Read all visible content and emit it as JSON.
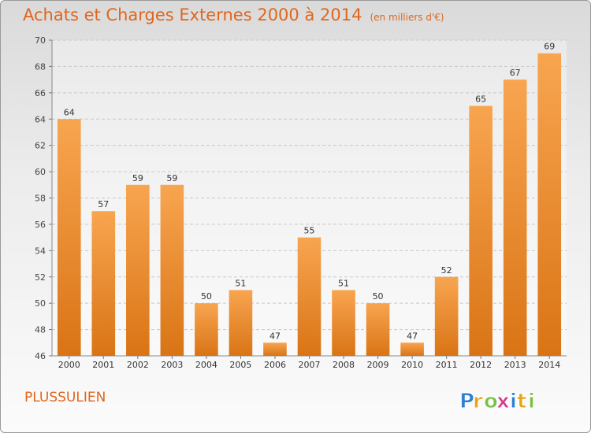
{
  "chart_data": {
    "type": "bar",
    "title": "Achats et Charges Externes 2000 à 2014",
    "subtitle": "(en milliers d'€)",
    "categories": [
      "2000",
      "2001",
      "2002",
      "2003",
      "2004",
      "2005",
      "2006",
      "2007",
      "2008",
      "2009",
      "2010",
      "2011",
      "2012",
      "2013",
      "2014"
    ],
    "values": [
      64,
      57,
      59,
      59,
      50,
      51,
      47,
      55,
      51,
      50,
      47,
      52,
      65,
      67,
      69
    ],
    "ylim": [
      46,
      70
    ],
    "yticks": [
      46,
      48,
      50,
      52,
      54,
      56,
      58,
      60,
      62,
      64,
      66,
      68,
      70
    ],
    "grid": true,
    "bar_color": "#f59a3c",
    "xlabel": "",
    "ylabel": ""
  },
  "commune": "PLUSSULIEN",
  "logo": {
    "letters": [
      "P",
      "r",
      "o",
      "x",
      "i",
      "t",
      "i"
    ],
    "colors": [
      "#2f80d1",
      "#e8a317",
      "#7ac142",
      "#d83a8f",
      "#2f80d1",
      "#e8a317",
      "#7ac142"
    ]
  },
  "colors": {
    "accent": "#e0661c"
  }
}
